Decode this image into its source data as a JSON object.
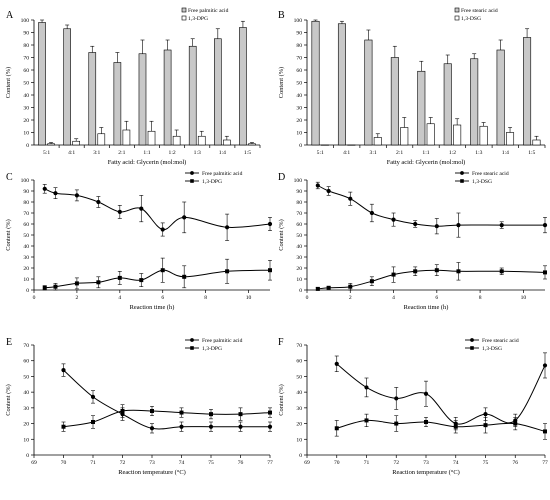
{
  "chart_data": [
    {
      "panel": "A",
      "type": "bar",
      "categories": [
        "5:1",
        "4:1",
        "3:1",
        "2:1",
        "1:1",
        "1:2",
        "1:3",
        "1:4",
        "1:5"
      ],
      "series": [
        {
          "name": "Free palmitic acid",
          "values": [
            98,
            93,
            74,
            66,
            73,
            76,
            79,
            85,
            94
          ],
          "errors": [
            2,
            3,
            5,
            8,
            11,
            8,
            6,
            8,
            5
          ]
        },
        {
          "name": "1,3-DPG",
          "values": [
            1,
            3,
            9,
            12,
            11,
            7,
            7,
            4,
            1
          ],
          "errors": [
            1,
            2,
            5,
            7,
            8,
            5,
            4,
            3,
            1
          ]
        }
      ],
      "xlabel": "Fatty acid: Glycerin (mol:mol)",
      "ylabel": "Content (%)",
      "ylim": [
        0,
        100
      ],
      "yticks": [
        "0",
        "10",
        "20",
        "30",
        "40",
        "50",
        "60",
        "70",
        "80",
        "90",
        "100"
      ]
    },
    {
      "panel": "B",
      "type": "bar",
      "categories": [
        "5:1",
        "4:1",
        "3:1",
        "2:1",
        "1:1",
        "1:2",
        "1:3",
        "1:4",
        "1:5"
      ],
      "series": [
        {
          "name": "Free stearic acid",
          "values": [
            99,
            97,
            84,
            70,
            59,
            65,
            69,
            76,
            86
          ],
          "errors": [
            1,
            2,
            8,
            9,
            8,
            7,
            4,
            8,
            7
          ]
        },
        {
          "name": "1,3-DSG",
          "values": [
            0,
            0,
            6,
            14,
            17,
            16,
            15,
            10,
            4
          ],
          "errors": [
            0,
            0,
            3,
            8,
            5,
            5,
            3,
            4,
            3
          ]
        }
      ],
      "xlabel": "Fatty acid: Glycerin (mol:mol)",
      "ylabel": "Content (%)",
      "ylim": [
        0,
        100
      ],
      "yticks": [
        "0",
        "10",
        "20",
        "30",
        "40",
        "50",
        "60",
        "70",
        "80",
        "90",
        "100"
      ]
    },
    {
      "panel": "C",
      "type": "line",
      "series": [
        {
          "name": "Free palmitic acid",
          "x": [
            0.5,
            1,
            2,
            3,
            4,
            5,
            6,
            7,
            9,
            11
          ],
          "values": [
            92,
            88,
            86,
            80,
            71,
            74,
            55,
            66,
            57,
            60
          ],
          "errors": [
            4,
            5,
            5,
            5,
            6,
            12,
            6,
            14,
            12,
            6
          ]
        },
        {
          "name": "1,3-DPG",
          "x": [
            0.5,
            1,
            2,
            3,
            4,
            5,
            6,
            7,
            9,
            11
          ],
          "values": [
            2,
            3,
            6,
            7,
            11,
            9,
            18,
            12,
            17,
            18
          ],
          "errors": [
            2,
            3,
            5,
            5,
            6,
            6,
            11,
            10,
            11,
            9
          ]
        }
      ],
      "xlabel": "Reaction time (h)",
      "ylabel": "Content (%)",
      "xlim": [
        0,
        11
      ],
      "ylim": [
        0,
        100
      ],
      "xticks": [
        "0",
        "2",
        "4",
        "6",
        "8",
        "10"
      ],
      "yticks": [
        "0",
        "10",
        "20",
        "30",
        "40",
        "50",
        "60",
        "70",
        "80",
        "90",
        "100"
      ]
    },
    {
      "panel": "D",
      "type": "line",
      "series": [
        {
          "name": "Free stearic acid",
          "x": [
            0.5,
            1,
            2,
            3,
            4,
            5,
            6,
            7,
            9,
            11
          ],
          "values": [
            95,
            90,
            83,
            70,
            64,
            60,
            58,
            59,
            59,
            59
          ],
          "errors": [
            3,
            4,
            6,
            8,
            6,
            3,
            7,
            11,
            3,
            7
          ]
        },
        {
          "name": "1,3-DSG",
          "x": [
            0.5,
            1,
            2,
            3,
            4,
            5,
            6,
            7,
            9,
            11
          ],
          "values": [
            1,
            2,
            3,
            8,
            14,
            17,
            18,
            17,
            17,
            16
          ],
          "errors": [
            1,
            1,
            3,
            4,
            7,
            4,
            5,
            8,
            3,
            6
          ]
        }
      ],
      "xlabel": "Reaction time (h)",
      "ylabel": "Content (%)",
      "xlim": [
        0,
        11
      ],
      "ylim": [
        0,
        100
      ],
      "xticks": [
        "0",
        "2",
        "4",
        "6",
        "8",
        "10"
      ],
      "yticks": [
        "0",
        "10",
        "20",
        "30",
        "40",
        "50",
        "60",
        "70",
        "80",
        "90",
        "100"
      ]
    },
    {
      "panel": "E",
      "type": "line",
      "series": [
        {
          "name": "Free palmitic acid",
          "x": [
            70,
            71,
            72,
            73,
            74,
            75,
            76,
            77
          ],
          "values": [
            54,
            37,
            26,
            17,
            18,
            18,
            18,
            18
          ],
          "errors": [
            4,
            4,
            4,
            3,
            3,
            3,
            3,
            3
          ]
        },
        {
          "name": "1,3-DPG",
          "x": [
            70,
            71,
            72,
            73,
            74,
            75,
            76,
            77
          ],
          "values": [
            18,
            21,
            28,
            28,
            27,
            26,
            26,
            27
          ],
          "errors": [
            3,
            4,
            4,
            3,
            3,
            3,
            4,
            3
          ]
        }
      ],
      "xlabel": "Reaction temperature (°C)",
      "ylabel": "Content (%)",
      "xlim": [
        69,
        77
      ],
      "ylim": [
        0,
        70
      ],
      "xticks": [
        "69",
        "70",
        "71",
        "72",
        "73",
        "74",
        "75",
        "76",
        "77"
      ],
      "yticks": [
        "0",
        "10",
        "20",
        "30",
        "40",
        "50",
        "60",
        "70"
      ]
    },
    {
      "panel": "F",
      "type": "line",
      "series": [
        {
          "name": "Free stearic acid",
          "x": [
            70,
            71,
            72,
            73,
            74,
            75,
            76,
            77
          ],
          "values": [
            58,
            43,
            36,
            39,
            20,
            26,
            22,
            57
          ],
          "errors": [
            5,
            6,
            7,
            8,
            4,
            4,
            4,
            8
          ]
        },
        {
          "name": "1,3-DSG",
          "x": [
            70,
            71,
            72,
            73,
            74,
            75,
            76,
            77
          ],
          "values": [
            17,
            22,
            20,
            21,
            18,
            19,
            20,
            15
          ],
          "errors": [
            5,
            4,
            5,
            3,
            4,
            5,
            4,
            5
          ]
        }
      ],
      "xlabel": "Reaction temperature (°C)",
      "ylabel": "Content (%)",
      "xlim": [
        69,
        77
      ],
      "ylim": [
        0,
        70
      ],
      "xticks": [
        "69",
        "70",
        "71",
        "72",
        "73",
        "74",
        "75",
        "76",
        "77"
      ],
      "yticks": [
        "0",
        "10",
        "20",
        "30",
        "40",
        "50",
        "60",
        "70"
      ]
    }
  ]
}
